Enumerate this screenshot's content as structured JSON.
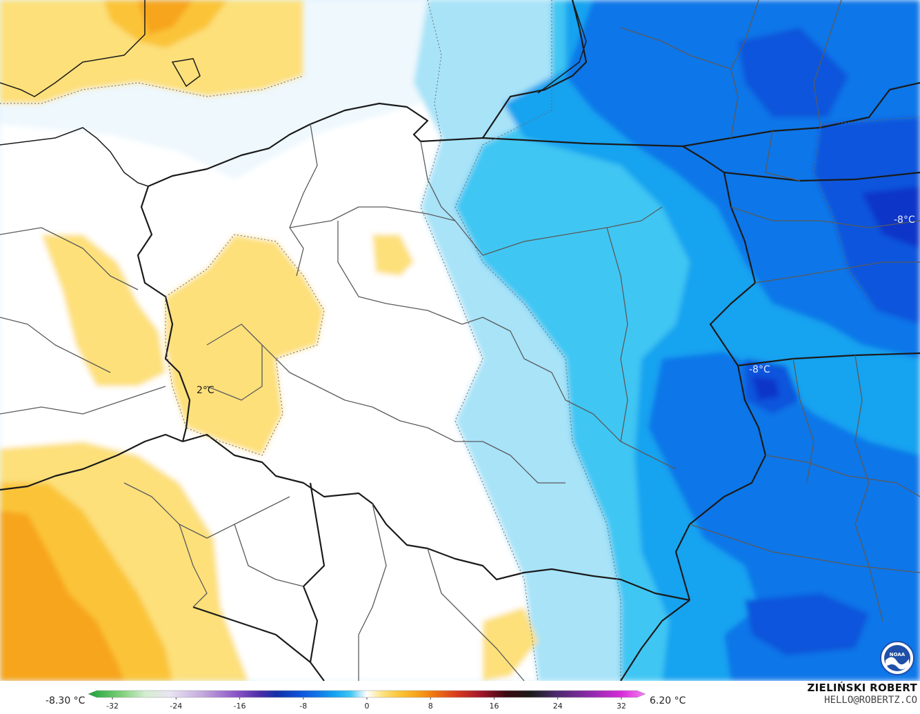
{
  "map": {
    "labels": {
      "center_west": "2°C",
      "east_top": "-8°C",
      "east_middle": "-8°C"
    },
    "colors": {
      "warm_deep": "#f7a51b",
      "warm": "#fbc438",
      "warm_light": "#fde07a",
      "warm_pale": "#fff3b8",
      "neutral": "#ffffff",
      "cool_pale": "#e6f5fd",
      "cool_light": "#a8e3f8",
      "cool": "#3fc6f3",
      "cool_mid": "#14a3f0",
      "cool_deep": "#1176e8",
      "cold": "#0f55dc",
      "coldest": "#1034c8",
      "border": "#1a1a1a",
      "region_border": "#5a5a5a"
    }
  },
  "legend": {
    "min_label": "-8.30 °C",
    "max_label": "6.20 °C",
    "ticks": [
      "-32",
      "-24",
      "-16",
      "-8",
      "0",
      "8",
      "16",
      "24",
      "32"
    ],
    "tick_values": [
      -32,
      -24,
      -16,
      -8,
      0,
      8,
      16,
      24,
      32
    ],
    "range": [
      -34,
      34
    ],
    "stops": [
      {
        "v": -34,
        "c": "#1aa23a"
      },
      {
        "v": -30,
        "c": "#7ecf7a"
      },
      {
        "v": -27,
        "c": "#d4eed0"
      },
      {
        "v": -24,
        "c": "#e9e4f2"
      },
      {
        "v": -20,
        "c": "#c3a8dd"
      },
      {
        "v": -16,
        "c": "#8b55c8"
      },
      {
        "v": -13,
        "c": "#4a2ea8"
      },
      {
        "v": -11,
        "c": "#1030a8"
      },
      {
        "v": -8,
        "c": "#0f55dc"
      },
      {
        "v": -6,
        "c": "#1176e8"
      },
      {
        "v": -4,
        "c": "#14a3f0"
      },
      {
        "v": -2,
        "c": "#3fc6f3"
      },
      {
        "v": -1,
        "c": "#a8e3f8"
      },
      {
        "v": 0,
        "c": "#ffffff"
      },
      {
        "v": 2,
        "c": "#fde07a"
      },
      {
        "v": 4,
        "c": "#fbc438"
      },
      {
        "v": 6,
        "c": "#f7a51b"
      },
      {
        "v": 8,
        "c": "#f07a12"
      },
      {
        "v": 11,
        "c": "#d83a20"
      },
      {
        "v": 14,
        "c": "#a0142a"
      },
      {
        "v": 17,
        "c": "#3a0a10"
      },
      {
        "v": 20,
        "c": "#1a1a1a"
      },
      {
        "v": 23,
        "c": "#4a2a6a"
      },
      {
        "v": 27,
        "c": "#8a2aa8"
      },
      {
        "v": 31,
        "c": "#d62ad8"
      },
      {
        "v": 34,
        "c": "#f57ef0"
      }
    ]
  },
  "credits": {
    "author": "ZIELIŃSKI ROBERT",
    "contact": "HELLO@ROBERTZ.CO"
  },
  "logo": {
    "icon": "noaa-logo-icon",
    "text": "NOAA"
  }
}
